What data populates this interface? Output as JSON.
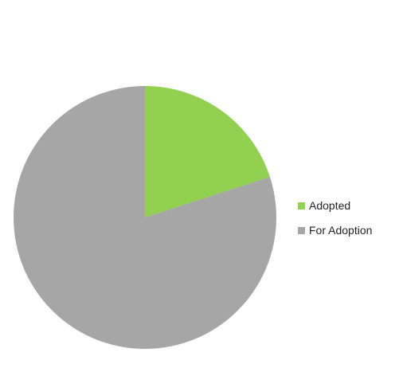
{
  "chart_data": {
    "type": "pie",
    "title": "",
    "categories": [
      "Adopted",
      "For Adoption"
    ],
    "values": [
      20,
      80
    ],
    "colors": [
      "#92d050",
      "#a6a6a6"
    ],
    "start_angle_deg": 0,
    "direction": "clockwise",
    "legend": {
      "position": "right",
      "entries": [
        "Adopted",
        "For Adoption"
      ]
    }
  }
}
